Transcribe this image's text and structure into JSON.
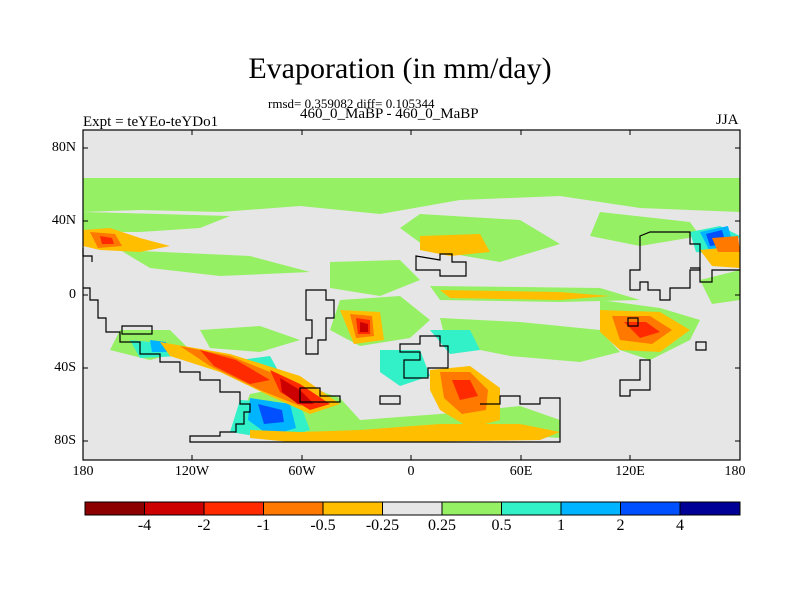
{
  "plot": {
    "title": "Evaporation (in mm/day)",
    "stats": "rmsd= 0.359082 diff= 0.105344",
    "time_label": "460_0_MaBP - 460_0_MaBP",
    "expt_label": "Expt = teYEo-teYDo1",
    "season": "JJA"
  },
  "map": {
    "background_color": "#e6e6e6",
    "lat_ticks": [
      "80N",
      "40N",
      "0",
      "40S",
      "80S"
    ],
    "lon_ticks": [
      "180",
      "120W",
      "60W",
      "0",
      "60E",
      "120E",
      "180"
    ]
  },
  "colorbar": {
    "labels": [
      "-4",
      "-2",
      "-1",
      "-0.5",
      "-0.25",
      "0.25",
      "0.5",
      "1",
      "2",
      "4"
    ],
    "colors": [
      "#8c0000",
      "#cc0000",
      "#ff2a00",
      "#ff7800",
      "#ffbe00",
      "#e6e6e6",
      "#96f064",
      "#32f0c8",
      "#00b4ff",
      "#0050ff",
      "#000096"
    ]
  }
}
